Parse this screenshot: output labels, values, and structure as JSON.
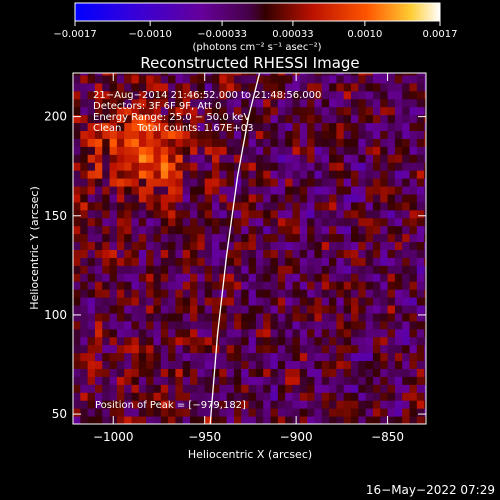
{
  "chart_data": {
    "type": "heatmap",
    "title": "Reconstructed RHESSI Image",
    "xlabel": "Heliocentric X (arcsec)",
    "ylabel": "Heliocentric Y (arcsec)",
    "xlim": [
      -1022,
      -829
    ],
    "ylim": [
      45,
      222
    ],
    "x_ticks": [
      -1000,
      -950,
      -900,
      -850
    ],
    "x_tick_labels": [
      "−1000",
      "−950",
      "−900",
      "−850"
    ],
    "y_ticks": [
      50,
      100,
      150,
      200
    ],
    "y_tick_labels": [
      "50",
      "100",
      "150",
      "200"
    ],
    "colorbar": {
      "range": [
        -0.0017,
        0.0017
      ],
      "ticks": [
        -0.0017,
        -0.001,
        -0.00033,
        0.00033,
        0.001,
        0.0017
      ],
      "tick_labels": [
        "−0.0017",
        "−0.0010",
        "−0.00033",
        "0.00033",
        "0.0010",
        "0.0017"
      ],
      "units_label": "(photons cm⁻² s⁻¹ asec⁻²)"
    },
    "annotations": [
      "21−Aug−2014 21:46:52.000 to 21:48:56.000",
      "Detectors: 3F 6F 9F, Att 0",
      "Energy Range: 25.0 − 50.0 keV",
      "Clean     Total counts: 1.67E+03"
    ],
    "peak_label": "Position of Peak = [−979,182]",
    "peak": [
      -979,
      182
    ],
    "limb_curve": {
      "x": [
        -947,
        -943,
        -938,
        -932,
        -926,
        -920
      ],
      "y": [
        45,
        90,
        130,
        170,
        200,
        222
      ]
    },
    "grid": false
  },
  "footer": {
    "timestamp": "16−May−2022 07:29"
  }
}
